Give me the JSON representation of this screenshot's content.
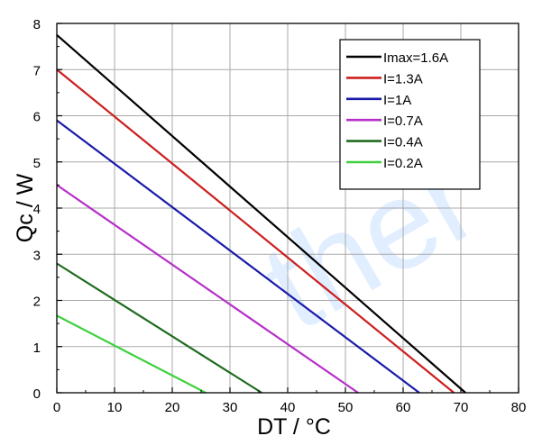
{
  "watermark": "ther",
  "chart_data": {
    "type": "line",
    "xlabel": "DT / °C",
    "ylabel": "Qc / W",
    "xlim": [
      0,
      80
    ],
    "ylim": [
      0,
      8
    ],
    "xticks": [
      "0",
      "10",
      "20",
      "30",
      "40",
      "50",
      "60",
      "70",
      "80"
    ],
    "yticks": [
      "0",
      "1",
      "2",
      "3",
      "4",
      "5",
      "6",
      "7",
      "8"
    ],
    "grid": true,
    "legend_position": "top-right",
    "series": [
      {
        "name": "Imax=1.6A",
        "color": "#000000",
        "x": [
          0,
          70.8
        ],
        "y": [
          7.75,
          0
        ]
      },
      {
        "name": "I=1.3A",
        "color": "#cc1f1f",
        "x": [
          0,
          68.8
        ],
        "y": [
          7.0,
          0
        ]
      },
      {
        "name": "I=1A",
        "color": "#1a1aa8",
        "x": [
          0,
          62.8
        ],
        "y": [
          5.9,
          0
        ]
      },
      {
        "name": "I=0.7A",
        "color": "#b62fc9",
        "x": [
          0,
          52.2
        ],
        "y": [
          4.5,
          0
        ]
      },
      {
        "name": "I=0.4A",
        "color": "#1f6b1f",
        "x": [
          0,
          35.5
        ],
        "y": [
          2.8,
          0
        ]
      },
      {
        "name": "I=0.2A",
        "color": "#3fd13f",
        "x": [
          0,
          25.8
        ],
        "y": [
          1.67,
          0
        ]
      }
    ]
  }
}
